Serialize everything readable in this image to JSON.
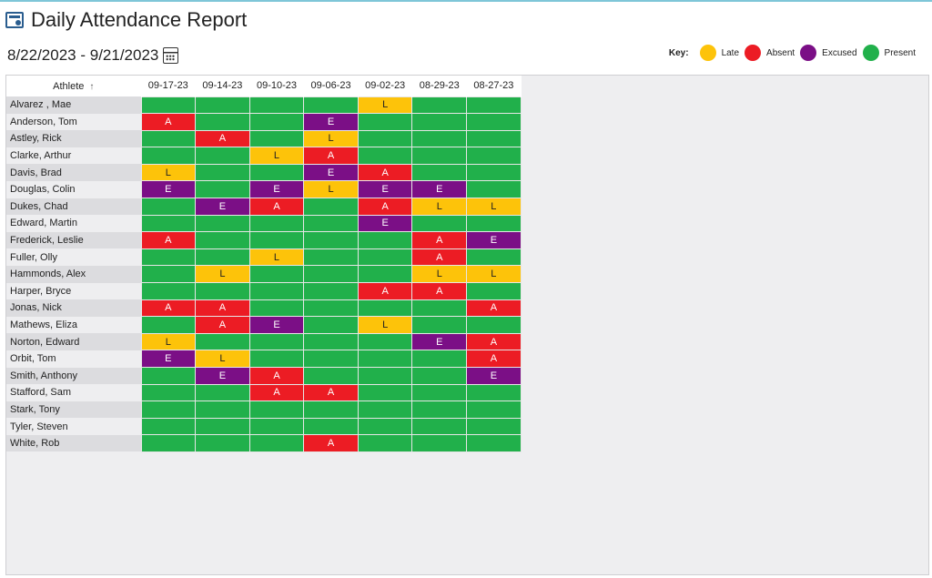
{
  "header": {
    "title": "Daily Attendance Report",
    "icon": "report-icon"
  },
  "date_range": "8/22/2023 - 9/21/2023",
  "key": {
    "label": "Key",
    "items": [
      {
        "name": "Late",
        "color": "#fdc30a"
      },
      {
        "name": "Absent",
        "color": "#ec1c24"
      },
      {
        "name": "Excused",
        "color": "#7b0f86"
      },
      {
        "name": "Present",
        "color": "#21b04b"
      }
    ]
  },
  "table": {
    "athlete_header": "Athlete",
    "sort_indicator": "↑",
    "dates": [
      "09-17-23",
      "09-14-23",
      "09-10-23",
      "09-06-23",
      "09-02-23",
      "08-29-23",
      "08-27-23"
    ],
    "rows": [
      {
        "name": "Alvarez , Mae",
        "marks": [
          "P",
          "P",
          "P",
          "P",
          "L",
          "P",
          "P"
        ]
      },
      {
        "name": "Anderson, Tom",
        "marks": [
          "A",
          "P",
          "P",
          "E",
          "P",
          "P",
          "P"
        ]
      },
      {
        "name": "Astley, Rick",
        "marks": [
          "P",
          "A",
          "P",
          "L",
          "P",
          "P",
          "P"
        ]
      },
      {
        "name": "Clarke, Arthur",
        "marks": [
          "P",
          "P",
          "L",
          "A",
          "P",
          "P",
          "P"
        ]
      },
      {
        "name": "Davis, Brad",
        "marks": [
          "L",
          "P",
          "P",
          "E",
          "A",
          "P",
          "P"
        ]
      },
      {
        "name": "Douglas, Colin",
        "marks": [
          "E",
          "P",
          "E",
          "L",
          "E",
          "E",
          "P"
        ]
      },
      {
        "name": "Dukes, Chad",
        "marks": [
          "P",
          "E",
          "A",
          "P",
          "A",
          "L",
          "L"
        ]
      },
      {
        "name": "Edward, Martin",
        "marks": [
          "P",
          "P",
          "P",
          "P",
          "E",
          "P",
          "P"
        ]
      },
      {
        "name": "Frederick, Leslie",
        "marks": [
          "A",
          "P",
          "P",
          "P",
          "P",
          "A",
          "E"
        ]
      },
      {
        "name": "Fuller, Olly",
        "marks": [
          "P",
          "P",
          "L",
          "P",
          "P",
          "A",
          "P"
        ]
      },
      {
        "name": "Hammonds, Alex",
        "marks": [
          "P",
          "L",
          "P",
          "P",
          "P",
          "L",
          "L"
        ]
      },
      {
        "name": "Harper, Bryce",
        "marks": [
          "P",
          "P",
          "P",
          "P",
          "A",
          "A",
          "P"
        ]
      },
      {
        "name": "Jonas, Nick",
        "marks": [
          "A",
          "A",
          "P",
          "P",
          "P",
          "P",
          "A"
        ]
      },
      {
        "name": "Mathews, Eliza",
        "marks": [
          "P",
          "A",
          "E",
          "P",
          "L",
          "P",
          "P"
        ]
      },
      {
        "name": "Norton, Edward",
        "marks": [
          "L",
          "P",
          "P",
          "P",
          "P",
          "E",
          "A"
        ]
      },
      {
        "name": "Orbit, Tom",
        "marks": [
          "E",
          "L",
          "P",
          "P",
          "P",
          "P",
          "A"
        ]
      },
      {
        "name": "Smith, Anthony",
        "marks": [
          "P",
          "E",
          "A",
          "P",
          "P",
          "P",
          "E"
        ]
      },
      {
        "name": "Stafford, Sam",
        "marks": [
          "P",
          "P",
          "A",
          "A",
          "P",
          "P",
          "P"
        ]
      },
      {
        "name": "Stark, Tony",
        "marks": [
          "P",
          "P",
          "P",
          "P",
          "P",
          "P",
          "P"
        ]
      },
      {
        "name": "Tyler, Steven",
        "marks": [
          "P",
          "P",
          "P",
          "P",
          "P",
          "P",
          "P"
        ]
      },
      {
        "name": "White, Rob",
        "marks": [
          "P",
          "P",
          "P",
          "A",
          "P",
          "P",
          "P"
        ]
      }
    ],
    "mark_labels": {
      "L": "L",
      "A": "A",
      "E": "E",
      "P": ""
    }
  }
}
